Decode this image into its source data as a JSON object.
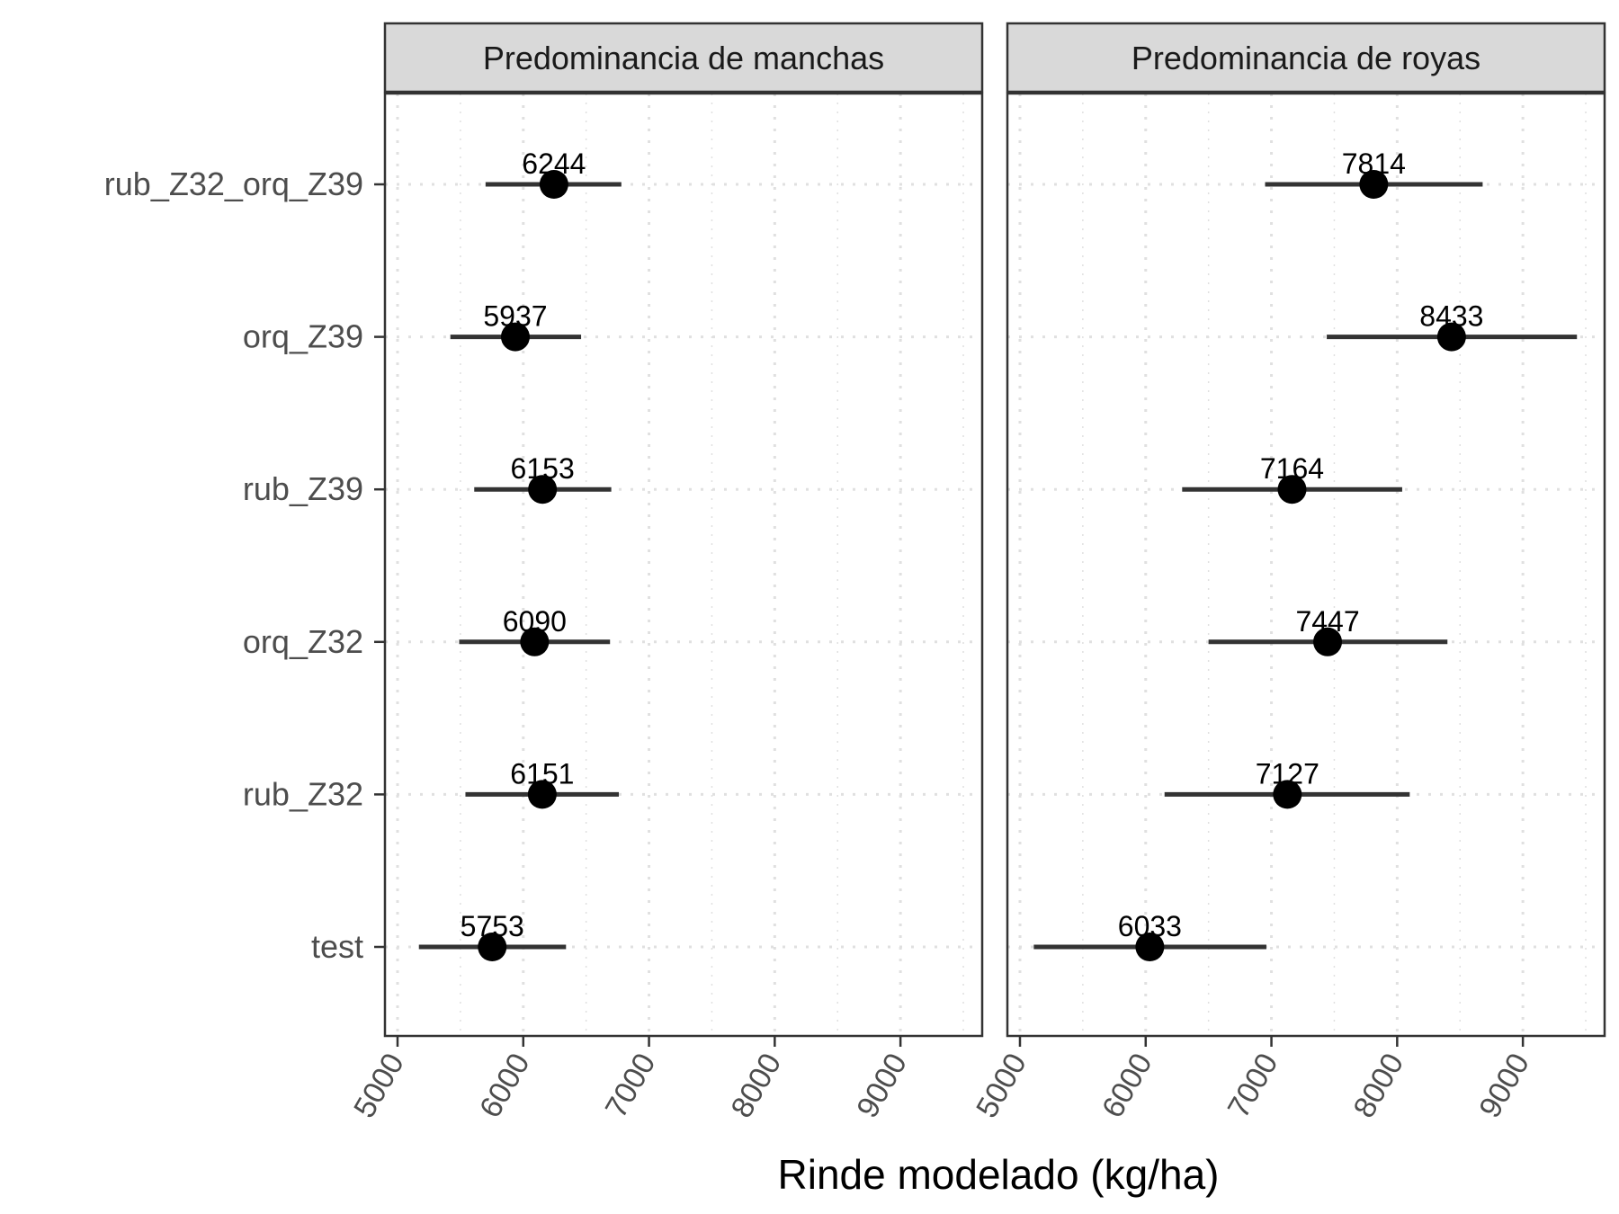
{
  "chart_data": {
    "type": "scatter",
    "subtype": "faceted-pointrange",
    "xlabel": "Rinde modelado (kg/ha)",
    "ylabel": "",
    "xlim": [
      4900,
      9650
    ],
    "xticks": [
      5000,
      6000,
      7000,
      8000,
      9000
    ],
    "categories": [
      "rub_Z32_orq_Z39",
      "orq_Z39",
      "rub_Z39",
      "orq_Z32",
      "rub_Z32",
      "test"
    ],
    "grid": true,
    "grid_style": "dotted",
    "facets": [
      {
        "title": "Predominancia de manchas",
        "points": [
          {
            "category": "rub_Z32_orq_Z39",
            "value": 6244,
            "lower": 5700,
            "upper": 6780,
            "label": "6244"
          },
          {
            "category": "orq_Z39",
            "value": 5937,
            "lower": 5420,
            "upper": 6460,
            "label": "5937"
          },
          {
            "category": "rub_Z39",
            "value": 6153,
            "lower": 5610,
            "upper": 6700,
            "label": "6153"
          },
          {
            "category": "orq_Z32",
            "value": 6090,
            "lower": 5490,
            "upper": 6690,
            "label": "6090"
          },
          {
            "category": "rub_Z32",
            "value": 6151,
            "lower": 5540,
            "upper": 6760,
            "label": "6151"
          },
          {
            "category": "test",
            "value": 5753,
            "lower": 5170,
            "upper": 6340,
            "label": "5753"
          }
        ]
      },
      {
        "title": "Predominancia de royas",
        "points": [
          {
            "category": "rub_Z32_orq_Z39",
            "value": 7814,
            "lower": 6950,
            "upper": 8680,
            "label": "7814"
          },
          {
            "category": "orq_Z39",
            "value": 8433,
            "lower": 7440,
            "upper": 9430,
            "label": "8433"
          },
          {
            "category": "rub_Z39",
            "value": 7164,
            "lower": 6290,
            "upper": 8040,
            "label": "7164"
          },
          {
            "category": "orq_Z32",
            "value": 7447,
            "lower": 6500,
            "upper": 8400,
            "label": "7447"
          },
          {
            "category": "rub_Z32",
            "value": 7127,
            "lower": 6150,
            "upper": 8100,
            "label": "7127"
          },
          {
            "category": "test",
            "value": 6033,
            "lower": 5110,
            "upper": 6960,
            "label": "6033"
          }
        ]
      }
    ]
  },
  "colors": {
    "point": "#000000",
    "errorbar": "#333333",
    "strip_fill": "#d9d9d9",
    "panel_border": "#333333",
    "grid": "#e0e0e0",
    "tick_text": "#4d4d4d"
  }
}
